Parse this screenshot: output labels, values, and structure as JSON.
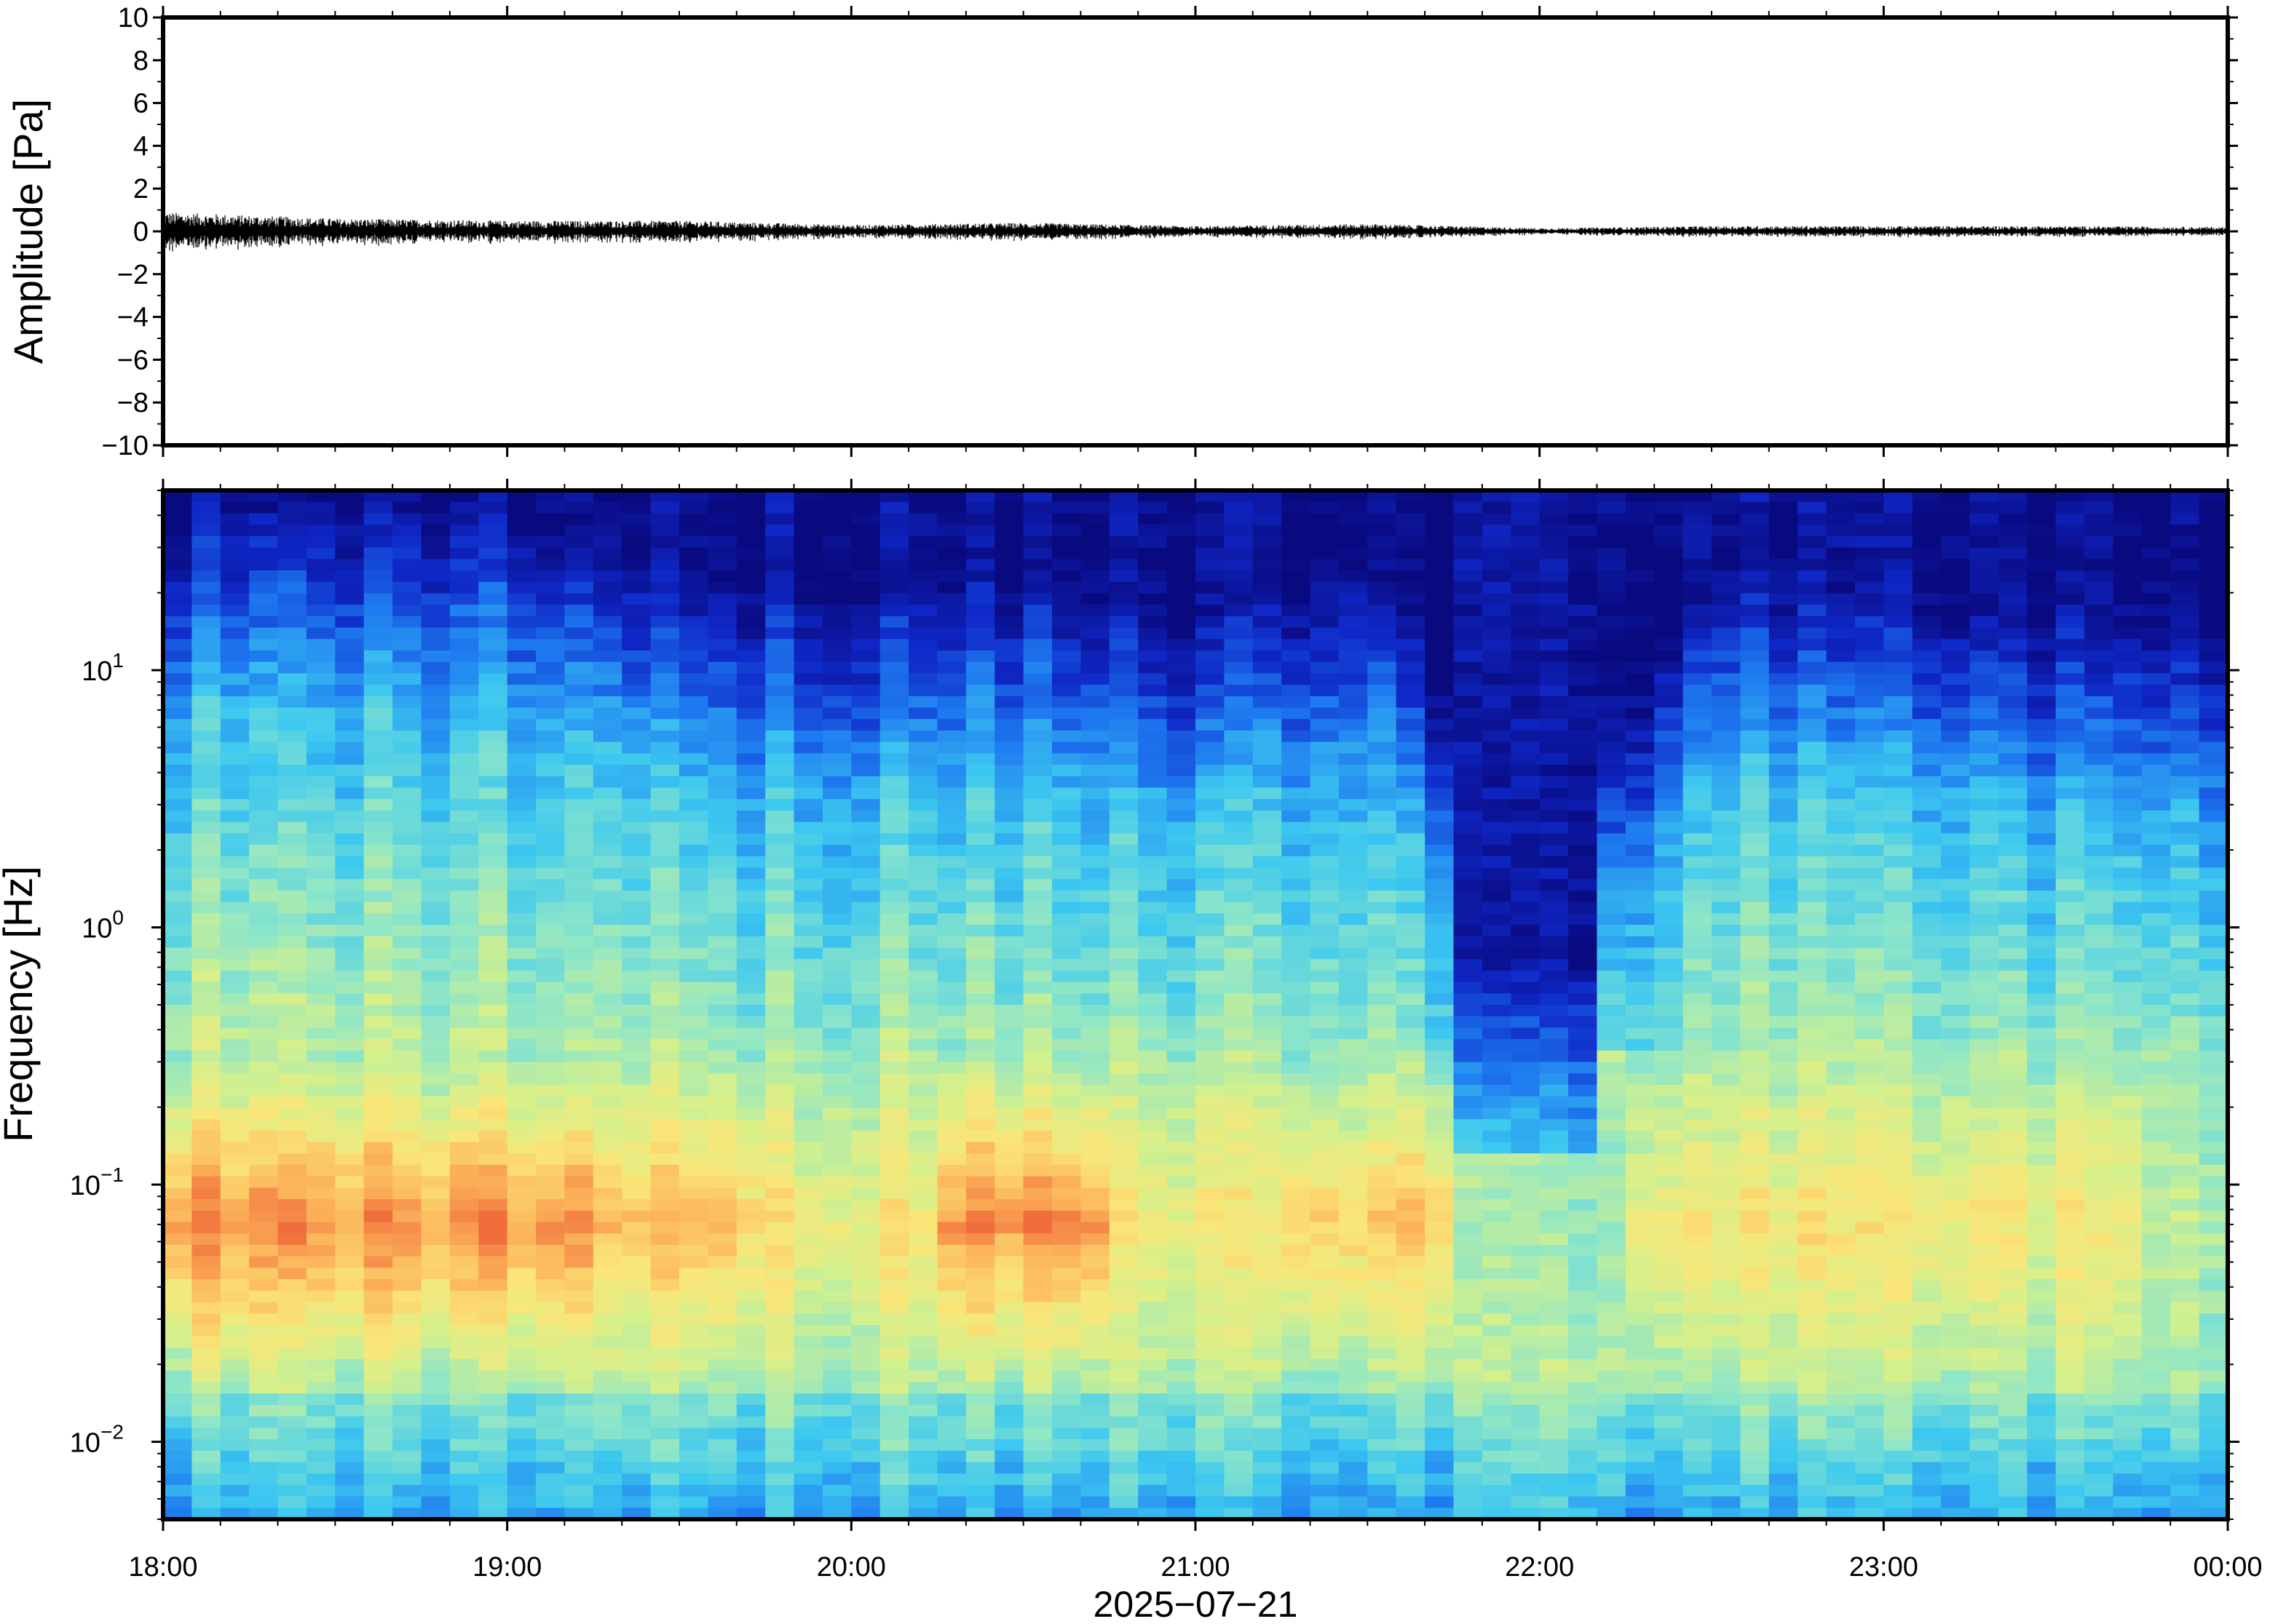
{
  "chart_data": [
    {
      "type": "line",
      "panel": "waveform",
      "xlabel": "",
      "ylabel": "Amplitude [Pa]",
      "ylim": [
        -10,
        10
      ],
      "yticks": [
        "10",
        "8",
        "6",
        "4",
        "2",
        "0",
        "−2",
        "−4",
        "−6",
        "−8",
        "−10"
      ],
      "ytick_values": [
        10,
        8,
        6,
        4,
        2,
        0,
        -2,
        -4,
        -6,
        -8,
        -10
      ],
      "grid": false,
      "series": [
        {
          "x_hours": [
            18.0,
            18.5,
            19.0,
            19.5,
            20.0,
            20.5,
            21.0,
            21.5,
            22.0,
            22.5,
            23.0,
            23.5,
            24.0
          ],
          "envelope_pa": [
            0.9,
            0.6,
            0.5,
            0.5,
            0.3,
            0.4,
            0.25,
            0.35,
            0.15,
            0.25,
            0.25,
            0.25,
            0.2
          ],
          "color": "#000000"
        }
      ]
    },
    {
      "type": "heatmap",
      "panel": "spectrogram",
      "ylabel": "Frequency [Hz]",
      "yscale": "log",
      "ylim_hz": [
        0.005,
        50
      ],
      "yticks": [
        {
          "base": "10",
          "exp": "1",
          "value": 10
        },
        {
          "base": "10",
          "exp": "0",
          "value": 1
        },
        {
          "base": "10",
          "exp": "−1",
          "value": 0.1
        },
        {
          "base": "10",
          "exp": "−2",
          "value": 0.01
        }
      ],
      "xlabel": "2025−07−21",
      "xticks": [
        "18:00",
        "19:00",
        "20:00",
        "21:00",
        "22:00",
        "23:00",
        "00:00"
      ],
      "xlim_hours": [
        18,
        24
      ],
      "colormap": [
        "#0a0a80",
        "#0f28c8",
        "#1e7af0",
        "#3cc8f0",
        "#8ee6c8",
        "#d4f08c",
        "#fae678",
        "#fcb45a",
        "#f06e3c"
      ],
      "columns": [
        {
          "t": 18.0,
          "top_khz_log": 1.45,
          "low_band": "red"
        },
        {
          "t": 19.0,
          "top_khz_log": 1.45,
          "low_band": "red"
        },
        {
          "t": 19.5,
          "top_khz_log": 1.2,
          "low_band": "orange"
        },
        {
          "t": 20.0,
          "top_khz_log": 1.1,
          "low_band": "yellow"
        },
        {
          "t": 20.5,
          "top_khz_log": 1.2,
          "low_band": "red"
        },
        {
          "t": 21.0,
          "top_khz_log": 1.0,
          "low_band": "yellow"
        },
        {
          "t": 21.5,
          "top_khz_log": 1.3,
          "low_band": "orange"
        },
        {
          "t": 22.0,
          "top_khz_log": 0.1,
          "low_band": "cyan"
        },
        {
          "t": 22.5,
          "top_khz_log": 1.2,
          "low_band": "yellow"
        },
        {
          "t": 23.0,
          "top_khz_log": 1.1,
          "low_band": "yellow"
        },
        {
          "t": 23.5,
          "top_khz_log": 1.05,
          "low_band": "yellow"
        },
        {
          "t": 24.0,
          "top_khz_log": 1.0,
          "low_band": "green"
        }
      ]
    }
  ]
}
